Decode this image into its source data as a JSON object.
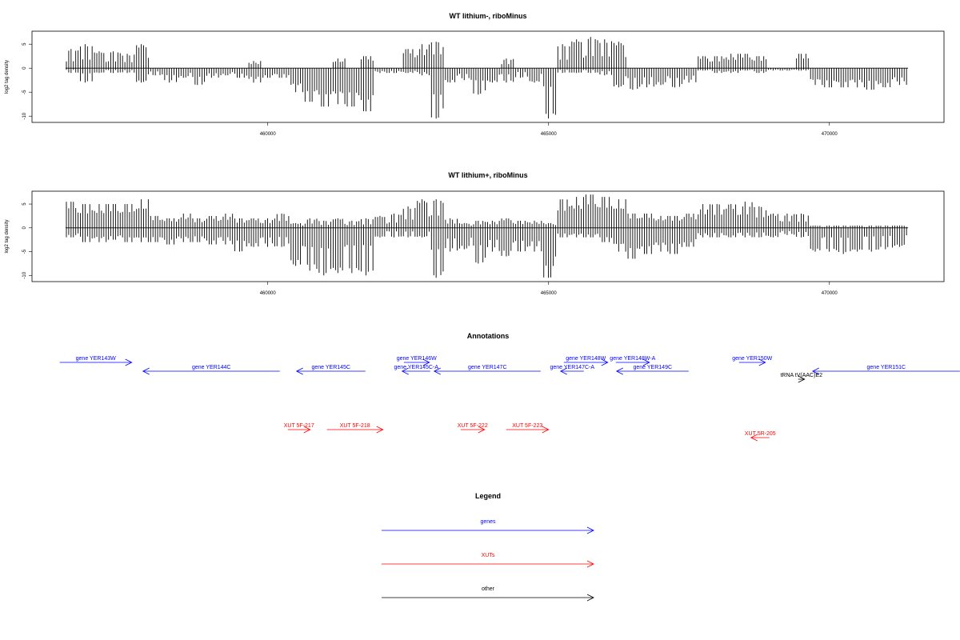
{
  "chart_data": [
    {
      "type": "bar",
      "title": "WT lithium-, riboMinus",
      "ylabel": "log2 tag density",
      "xlim": [
        455802,
        472040
      ],
      "ylim": [
        -11.3,
        7.7
      ],
      "xticks": [
        460000,
        465000,
        470000
      ],
      "xtick_labels": [
        "460000",
        "465000",
        "470000"
      ],
      "yticks": [
        5,
        0,
        -5,
        -10
      ],
      "ytick_labels": [
        "5",
        "0",
        "-5",
        "-10"
      ],
      "bin_start": 456400,
      "bin_size": 250,
      "positive": [
        4,
        5,
        3.5,
        3.5,
        3,
        5,
        0,
        0,
        0,
        0,
        0,
        0,
        0,
        1.5,
        0,
        0,
        0,
        0,
        0,
        2,
        0,
        2.5,
        0,
        0,
        4,
        5,
        5.5,
        0,
        0,
        0,
        0,
        2,
        0,
        0,
        0,
        5,
        6,
        6.5,
        6,
        5.5,
        0,
        0,
        0,
        0,
        0,
        2.5,
        2.5,
        3,
        3,
        2.5,
        0,
        0,
        3,
        0,
        0,
        0,
        0,
        0,
        0,
        0
      ],
      "negative": [
        -1,
        -3,
        -1,
        -1,
        -1,
        -3,
        -1.5,
        -3,
        -2,
        -3.5,
        -2,
        -1.5,
        -2,
        -3,
        -2,
        -2,
        -5,
        -7,
        -8,
        -7.5,
        -8,
        -9,
        -1,
        -1,
        -1,
        -1.5,
        -10.5,
        -3,
        -2.5,
        -5.5,
        -3,
        -3,
        -2,
        -3,
        -10.5,
        -1,
        -1,
        -1,
        -1.5,
        -4,
        -4.5,
        -4,
        -3.5,
        -4,
        -3,
        -0.5,
        -1,
        -1,
        -0.5,
        -1,
        -0.5,
        -0.5,
        -0.5,
        -3.5,
        -4,
        -4,
        -4,
        -4.5,
        -4,
        -3.5
      ]
    },
    {
      "type": "bar",
      "title": "WT lithium+, riboMinus",
      "ylabel": "log2 tag density",
      "xlim": [
        455802,
        472040
      ],
      "ylim": [
        -11.3,
        7.7
      ],
      "xticks": [
        460000,
        465000,
        470000
      ],
      "xtick_labels": [
        "460000",
        "465000",
        "470000"
      ],
      "yticks": [
        5,
        0,
        -5,
        -10
      ],
      "ytick_labels": [
        "5",
        "0",
        "-5",
        "-10"
      ],
      "bin_start": 456400,
      "bin_size": 250,
      "positive": [
        5.5,
        5,
        5,
        5,
        5,
        6,
        2.5,
        2,
        3,
        2,
        2.5,
        3,
        2,
        2,
        2,
        3,
        1,
        2,
        1.5,
        2,
        1.5,
        2,
        2.5,
        3,
        4.5,
        6,
        6,
        2,
        1,
        1.5,
        1.5,
        2,
        1.5,
        1.5,
        1,
        6,
        6.5,
        7,
        6.5,
        6,
        3,
        3,
        2.5,
        2.5,
        3,
        5,
        5,
        5,
        5.5,
        4.5,
        3,
        3,
        3,
        0.5,
        0.5,
        0.5,
        0.5,
        0.5,
        0.5,
        0.5
      ],
      "negative": [
        -2,
        -3,
        -3,
        -2.5,
        -3,
        -3,
        -3,
        -3.5,
        -3,
        -3,
        -3.5,
        -3.5,
        -5,
        -4,
        -4,
        -4,
        -8,
        -9,
        -10,
        -9.5,
        -9.5,
        -10,
        -2,
        -2,
        -2,
        -2,
        -10.5,
        -5,
        -4.5,
        -7.5,
        -5,
        -6,
        -5,
        -5,
        -10.5,
        -2,
        -2,
        -2,
        -3,
        -5,
        -6.5,
        -5.5,
        -5,
        -5.5,
        -4,
        -2,
        -2,
        -2,
        -2,
        -2,
        -2,
        -1.5,
        -2,
        -5,
        -5,
        -5.5,
        -5,
        -5,
        -4.5,
        -4
      ]
    }
  ],
  "annotations": {
    "title": "Annotations",
    "features": [
      {
        "name": "gene YER143W",
        "type": "gene",
        "start": 456296,
        "end": 457578,
        "strand": "+",
        "row": 1
      },
      {
        "name": "gene YER144C",
        "type": "gene",
        "start": 457778,
        "end": 460214,
        "strand": "-",
        "row": 2
      },
      {
        "name": "gene YER145C",
        "type": "gene",
        "start": 460513,
        "end": 461738,
        "strand": "-",
        "row": 2
      },
      {
        "name": "gene YER146W",
        "type": "gene",
        "start": 462422,
        "end": 462877,
        "strand": "+",
        "row": 1
      },
      {
        "name": "gene YER145C-A",
        "type": "gene",
        "start": 462393,
        "end": 462892,
        "strand": "-",
        "row": 2
      },
      {
        "name": "gene YER147C",
        "type": "gene",
        "start": 462963,
        "end": 464858,
        "strand": "-",
        "row": 2
      },
      {
        "name": "gene YER147C-A",
        "type": "gene",
        "start": 465214,
        "end": 465627,
        "strand": "-",
        "row": 2
      },
      {
        "name": "gene YER148W",
        "type": "gene",
        "start": 465271,
        "end": 466054,
        "strand": "+",
        "row": 1
      },
      {
        "name": "gene YER148W-A",
        "type": "gene",
        "start": 466197,
        "end": 466795,
        "strand": "+",
        "row": 1
      },
      {
        "name": "gene YER149C",
        "type": "gene",
        "start": 466211,
        "end": 467493,
        "strand": "-",
        "row": 2
      },
      {
        "name": "gene YER150W",
        "type": "gene",
        "start": 468390,
        "end": 468860,
        "strand": "+",
        "row": 1
      },
      {
        "name": "gene YER151C",
        "type": "gene",
        "start": 469701,
        "end": 472322,
        "strand": "-",
        "row": 2
      },
      {
        "name": "tRNA tV(AAC)E2",
        "type": "other",
        "start": 469444,
        "end": 469558,
        "strand": "+",
        "row": 3
      },
      {
        "name": "XUT 5F-217",
        "type": "xut",
        "start": 460356,
        "end": 460755,
        "strand": "+",
        "row": 4
      },
      {
        "name": "XUT 5F-218",
        "type": "xut",
        "start": 461054,
        "end": 462051,
        "strand": "+",
        "row": 4
      },
      {
        "name": "XUT 5F-222",
        "type": "xut",
        "start": 463433,
        "end": 463860,
        "strand": "+",
        "row": 4
      },
      {
        "name": "XUT 5F-223",
        "type": "xut",
        "start": 464245,
        "end": 465000,
        "strand": "+",
        "row": 4
      },
      {
        "name": "XUT 5R-205",
        "type": "xut",
        "start": 468604,
        "end": 468932,
        "strand": "-",
        "row": 5
      }
    ]
  },
  "legend": {
    "title": "Legend",
    "items": [
      {
        "label": "genes",
        "color": "#0000ff"
      },
      {
        "label": "XUTs",
        "color": "#ff0000"
      },
      {
        "label": "other",
        "color": "#000000"
      }
    ]
  },
  "colors": {
    "gene": "#0000ff",
    "xut": "#ff0000",
    "other": "#000000"
  }
}
